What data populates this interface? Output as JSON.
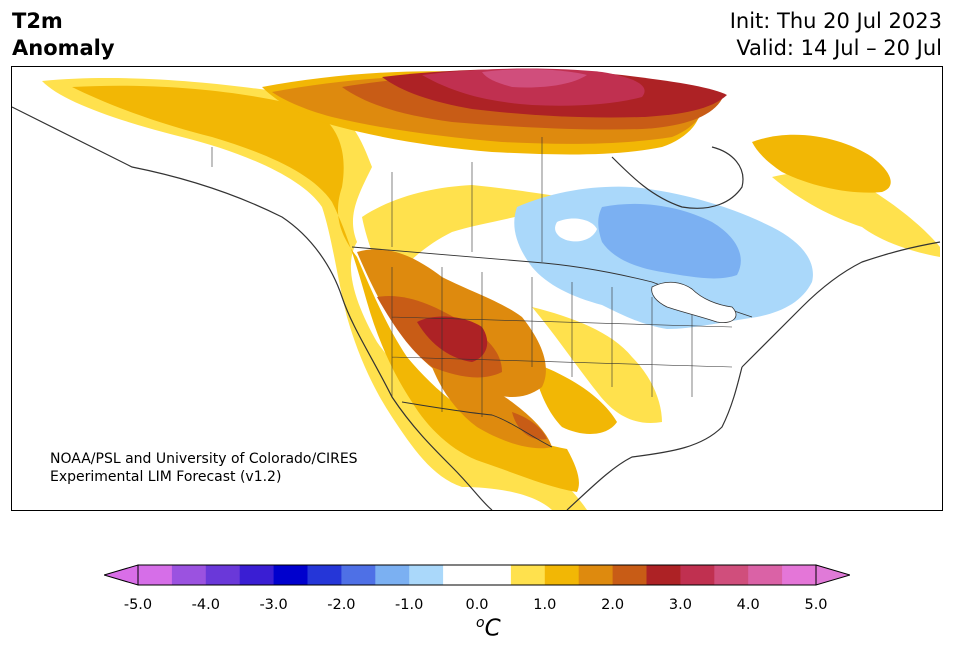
{
  "title": {
    "variable": "T2m",
    "subtitle": "Anomaly",
    "init": "Init: Thu 20 Jul 2023",
    "valid": "Valid: 14 Jul – 20 Jul"
  },
  "credit": {
    "line1": "NOAA/PSL and University of Colorado/CIRES",
    "line2": "Experimental LIM Forecast (v1.2)"
  },
  "colorbar": {
    "unit_sup": "o",
    "unit_main": "C",
    "tick_labels": [
      "-5.0",
      "-4.0",
      "-3.0",
      "-2.0",
      "-1.0",
      "0.0",
      "1.0",
      "2.0",
      "3.0",
      "4.0",
      "5.0"
    ],
    "colors": [
      "#d66ee8",
      "#9b52e0",
      "#6a38d9",
      "#3a1ed3",
      "#0000cd",
      "#2536d8",
      "#4e70e6",
      "#7bb0f2",
      "#aad8fa",
      "#ffffff",
      "#ffffff",
      "#ffe14d",
      "#f2b705",
      "#de8a0e",
      "#c85c16",
      "#ad2225",
      "#c03050",
      "#d04e7c",
      "#da62a6",
      "#e476d8"
    ],
    "under_color": "#d96ee8",
    "over_color": "#e07ad8"
  },
  "map": {
    "region": "North America",
    "projection": "conic"
  }
}
